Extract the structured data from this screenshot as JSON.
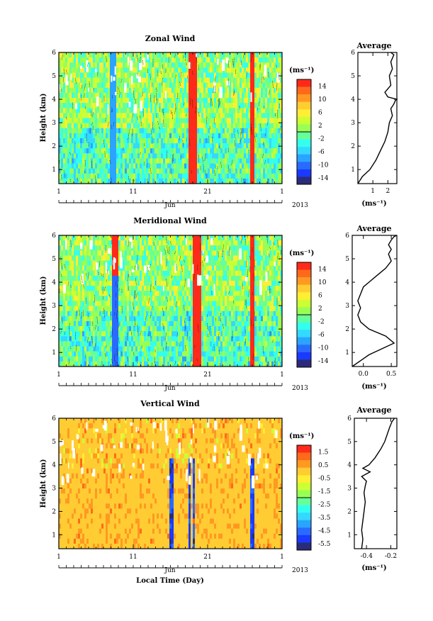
{
  "figure": {
    "x_axis_title": "Local Time (Day)",
    "month_label": "Jun",
    "year_label": "2013",
    "unit_label": "(ms⁻¹)",
    "y_axis_title": "Height (km)"
  },
  "chart_data": [
    {
      "type": "heatmap",
      "title": "Zonal Wind",
      "xlabel": "Jun 2013",
      "ylabel": "Height (km)",
      "x_ticks": [
        "1",
        "11",
        "21",
        "1"
      ],
      "y_ticks": [
        "1",
        "2",
        "3",
        "4",
        "5",
        "6"
      ],
      "xlim_days": [
        1,
        31
      ],
      "ylim": [
        0.4,
        6.0
      ],
      "colorbar": {
        "label": "(ms⁻¹)",
        "ticks": [
          "14",
          "10",
          "6",
          "2",
          "-2",
          "-6",
          "-10",
          "-14"
        ],
        "range": [
          -16,
          16
        ]
      },
      "colors": {
        "dominant": "#66ff99",
        "secondary": "#33ddff",
        "strong": "#ff2a1a"
      }
    },
    {
      "type": "line",
      "title": "Average",
      "xlabel": "(ms⁻¹)",
      "x_ticks": [
        "1",
        "2"
      ],
      "xlim": [
        0,
        2.6
      ],
      "ylim": [
        0.4,
        6.0
      ],
      "y_ticks": [
        "1",
        "2",
        "3",
        "4",
        "5",
        "6"
      ],
      "x": [
        0.0,
        0.3,
        0.8,
        1.2,
        1.5,
        1.8,
        2.0,
        2.1,
        2.3,
        2.2,
        2.4,
        2.5,
        2.6,
        2.0,
        1.8,
        2.2,
        2.1,
        2.3,
        2.2,
        2.4,
        2.2
      ],
      "y": [
        0.4,
        0.7,
        1.0,
        1.4,
        1.8,
        2.2,
        2.6,
        3.0,
        3.3,
        3.6,
        3.8,
        3.95,
        4.0,
        4.1,
        4.3,
        4.6,
        5.0,
        5.3,
        5.6,
        5.9,
        6.0
      ]
    },
    {
      "type": "heatmap",
      "title": "Meridional Wind",
      "xlabel": "Jun 2013",
      "ylabel": "Height (km)",
      "x_ticks": [
        "1",
        "11",
        "21",
        "1"
      ],
      "y_ticks": [
        "1",
        "2",
        "3",
        "4",
        "5",
        "6"
      ],
      "xlim_days": [
        1,
        31
      ],
      "ylim": [
        0.4,
        6.0
      ],
      "colorbar": {
        "label": "(ms⁻¹)",
        "ticks": [
          "14",
          "10",
          "6",
          "2",
          "-2",
          "-6",
          "-10",
          "-14"
        ],
        "range": [
          -16,
          16
        ]
      },
      "colors": {
        "dominant": "#66ff99",
        "secondary": "#33ddff",
        "strong": "#ff2a1a"
      }
    },
    {
      "type": "line",
      "title": "Average",
      "xlabel": "(ms⁻¹)",
      "x_ticks": [
        "0.0",
        "0.5"
      ],
      "xlim": [
        -0.2,
        0.6
      ],
      "ylim": [
        0.4,
        6.0
      ],
      "y_ticks": [
        "1",
        "2",
        "3",
        "4",
        "5",
        "6"
      ],
      "x": [
        -0.2,
        0.1,
        0.55,
        0.4,
        0.1,
        -0.05,
        -0.1,
        -0.05,
        -0.1,
        -0.05,
        0.0,
        0.1,
        0.25,
        0.4,
        0.5,
        0.45,
        0.5,
        0.45,
        0.5,
        0.55,
        0.6
      ],
      "y": [
        0.4,
        0.9,
        1.4,
        1.7,
        2.0,
        2.3,
        2.6,
        2.9,
        3.2,
        3.5,
        3.8,
        4.0,
        4.3,
        4.6,
        4.9,
        5.2,
        5.4,
        5.6,
        5.8,
        5.95,
        6.0
      ]
    },
    {
      "type": "heatmap",
      "title": "Vertical Wind",
      "xlabel": "Local Time (Day)",
      "ylabel": "Height (km)",
      "x_ticks": [
        "1",
        "11",
        "21",
        "1"
      ],
      "y_ticks": [
        "1",
        "2",
        "3",
        "4",
        "5",
        "6"
      ],
      "xlim_days": [
        1,
        31
      ],
      "ylim": [
        0.4,
        6.0
      ],
      "colorbar": {
        "label": "(ms⁻¹)",
        "ticks": [
          "1.5",
          "0.5",
          "-0.5",
          "-1.5",
          "-2.5",
          "-3.5",
          "-4.5",
          "-5.5"
        ],
        "range": [
          -6,
          2
        ]
      },
      "colors": {
        "dominant": "#ffcc33",
        "secondary": "#66ff99",
        "strong": "#1a3aff"
      }
    },
    {
      "type": "line",
      "title": "Average",
      "xlabel": "(ms⁻¹)",
      "x_ticks": [
        "-0.4",
        "-0.2"
      ],
      "xlim": [
        -0.5,
        -0.15
      ],
      "ylim": [
        0.4,
        6.0
      ],
      "y_ticks": [
        "1",
        "2",
        "3",
        "4",
        "5",
        "6"
      ],
      "x": [
        -0.44,
        -0.43,
        -0.44,
        -0.43,
        -0.42,
        -0.41,
        -0.42,
        -0.41,
        -0.4,
        -0.44,
        -0.37,
        -0.43,
        -0.38,
        -0.33,
        -0.28,
        -0.25,
        -0.23,
        -0.21,
        -0.19,
        -0.17
      ],
      "y": [
        0.4,
        0.8,
        1.2,
        1.6,
        2.0,
        2.4,
        2.8,
        3.1,
        3.3,
        3.5,
        3.7,
        3.85,
        4.0,
        4.3,
        4.7,
        5.0,
        5.3,
        5.6,
        5.85,
        6.0
      ]
    }
  ]
}
